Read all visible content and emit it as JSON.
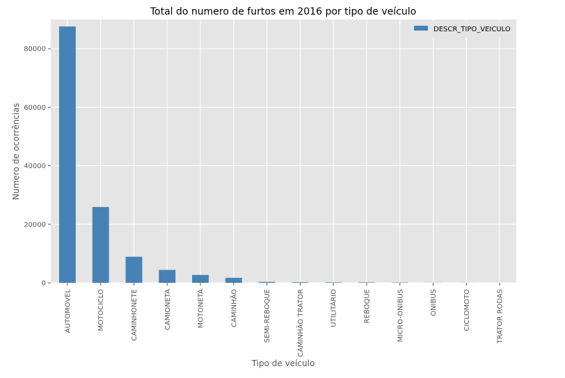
{
  "chart_data": {
    "type": "bar",
    "title": "Total do numero de furtos em 2016 por tipo de veículo",
    "xlabel": "Tipo de veículo",
    "ylabel": "Numero de ocorrências",
    "categories": [
      "AUTOMOVEL",
      "MOTOCICLO",
      "CAMINHONETE",
      "CAMIONETA",
      "MOTONETA",
      "CAMINHÃO",
      "SEMI-REBOQUE",
      "CAMINHÃO TRATOR",
      "UTILITÁRIO",
      "REBOQUE",
      "MICRO-ONIBUS",
      "ONIBUS",
      "CICLOMOTO",
      "TRATOR RODAS"
    ],
    "series": [
      {
        "name": "DESCR_TIPO_VEICULO",
        "color": "#4682b4",
        "values": [
          87600,
          25900,
          8900,
          4400,
          2700,
          1700,
          300,
          200,
          150,
          150,
          100,
          30,
          20,
          10
        ]
      }
    ],
    "ylim": [
      0,
      90000
    ],
    "yticks": [
      0,
      20000,
      40000,
      60000,
      80000
    ],
    "grid": true,
    "legend_position": "top-right",
    "background_color": "#e5e5e5",
    "grid_color": "#ffffff"
  }
}
